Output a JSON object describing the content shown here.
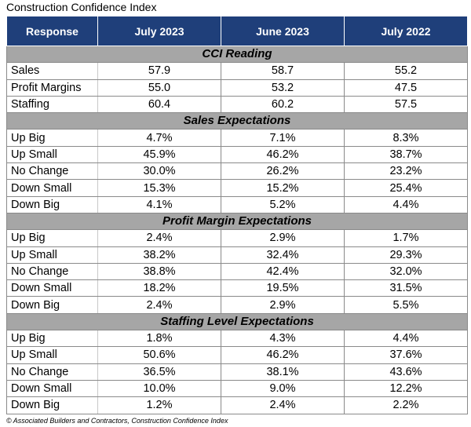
{
  "title": "Construction Confidence Index",
  "footer": "© Associated Builders and Contractors, Construction Confidence Index",
  "chart_data": {
    "type": "table",
    "columns": [
      "Response",
      "July 2023",
      "June 2023",
      "July 2022"
    ],
    "sections": [
      {
        "name": "CCI Reading",
        "rows": [
          {
            "label": "Sales",
            "values": [
              "57.9",
              "58.7",
              "55.2"
            ]
          },
          {
            "label": "Profit Margins",
            "values": [
              "55.0",
              "53.2",
              "47.5"
            ]
          },
          {
            "label": "Staffing",
            "values": [
              "60.4",
              "60.2",
              "57.5"
            ]
          }
        ]
      },
      {
        "name": "Sales Expectations",
        "rows": [
          {
            "label": "Up Big",
            "values": [
              "4.7%",
              "7.1%",
              "8.3%"
            ]
          },
          {
            "label": "Up Small",
            "values": [
              "45.9%",
              "46.2%",
              "38.7%"
            ]
          },
          {
            "label": "No Change",
            "values": [
              "30.0%",
              "26.2%",
              "23.2%"
            ]
          },
          {
            "label": "Down Small",
            "values": [
              "15.3%",
              "15.2%",
              "25.4%"
            ]
          },
          {
            "label": "Down Big",
            "values": [
              "4.1%",
              "5.2%",
              "4.4%"
            ]
          }
        ]
      },
      {
        "name": "Profit Margin Expectations",
        "rows": [
          {
            "label": "Up Big",
            "values": [
              "2.4%",
              "2.9%",
              "1.7%"
            ]
          },
          {
            "label": "Up Small",
            "values": [
              "38.2%",
              "32.4%",
              "29.3%"
            ]
          },
          {
            "label": "No Change",
            "values": [
              "38.8%",
              "42.4%",
              "32.0%"
            ]
          },
          {
            "label": "Down Small",
            "values": [
              "18.2%",
              "19.5%",
              "31.5%"
            ]
          },
          {
            "label": "Down Big",
            "values": [
              "2.4%",
              "2.9%",
              "5.5%"
            ]
          }
        ]
      },
      {
        "name": "Staffing Level Expectations",
        "rows": [
          {
            "label": "Up Big",
            "values": [
              "1.8%",
              "4.3%",
              "4.4%"
            ]
          },
          {
            "label": "Up Small",
            "values": [
              "50.6%",
              "46.2%",
              "37.6%"
            ]
          },
          {
            "label": "No Change",
            "values": [
              "36.5%",
              "38.1%",
              "43.6%"
            ]
          },
          {
            "label": "Down Small",
            "values": [
              "10.0%",
              "9.0%",
              "12.2%"
            ]
          },
          {
            "label": "Down Big",
            "values": [
              "1.2%",
              "2.4%",
              "2.2%"
            ]
          }
        ]
      }
    ],
    "colors": {
      "header_bg": "#1f3f7a",
      "header_text": "#ffffff",
      "section_bg": "#a6a6a6"
    }
  }
}
